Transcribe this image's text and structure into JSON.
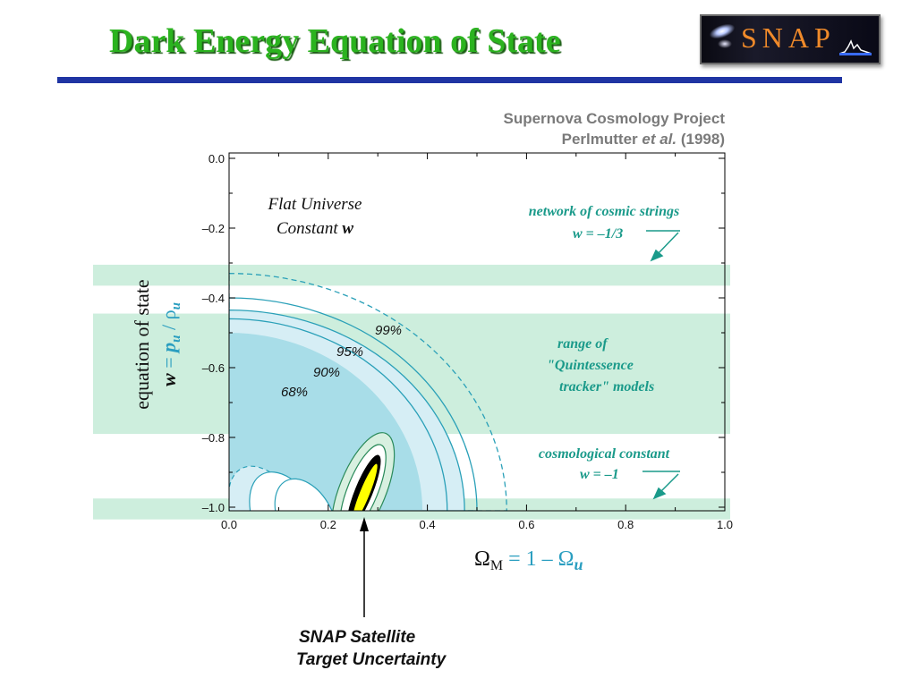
{
  "slide": {
    "title": "Dark Energy Equation of State",
    "logo_text": "SNAP"
  },
  "colors": {
    "title": "#2bb31f",
    "rule": "#1f34a3",
    "band": "#cdeedd",
    "contour_dark": "#a8dde8",
    "contour_light": "#d6eef5",
    "contour_line": "#2aa0b8",
    "snap_ellipse": "#ffff00",
    "annotation": "#1a9a8a"
  },
  "chart_data": {
    "type": "contour",
    "source_line1": "Supernova Cosmology Project",
    "source_line2_a": "Perlmutter ",
    "source_line2_b": "et al.",
    "source_line2_c": " (1998)",
    "xlim": [
      0.0,
      1.0
    ],
    "ylim": [
      -1.05,
      0.0
    ],
    "x_ticks": [
      "0.0",
      "0.2",
      "0.4",
      "0.6",
      "0.8",
      "1.0"
    ],
    "y_ticks": [
      "0.0",
      "–0.2",
      "–0.4",
      "–0.6",
      "–0.8",
      "–1.0"
    ],
    "y_tick_values": [
      0.0,
      -0.2,
      -0.4,
      -0.6,
      -0.8,
      -1.0
    ],
    "x_tick_values": [
      0.0,
      0.2,
      0.4,
      0.6,
      0.8,
      1.0
    ],
    "ylabel_line1": "equation of state",
    "ylabel_w": "w",
    "ylabel_eq": " = ",
    "ylabel_p": "p",
    "ylabel_u": "u",
    "ylabel_slash": " / ",
    "ylabel_rho": "ρ",
    "ylabel_u2": "u",
    "xlabel_omega": "Ω",
    "xlabel_M": "M",
    "xlabel_rest": " = 1 – Ω",
    "xlabel_u": "u",
    "inset_line1": "Flat Universe",
    "inset_line2_a": "Constant ",
    "inset_line2_b": "w",
    "bands": [
      {
        "name": "cosmic-strings-band",
        "ymin": -0.365,
        "ymax": -0.305
      },
      {
        "name": "quintessence-band",
        "ymin": -0.79,
        "ymax": -0.445
      },
      {
        "name": "cosmological-constant-band",
        "ymin": -1.035,
        "ymax": -0.975
      }
    ],
    "annotations": {
      "strings_line1": "network of cosmic strings",
      "strings_line2": "w = –1/3",
      "quint_line1": "range of",
      "quint_line2": "\"Quintessence",
      "quint_line3": "tracker\" models",
      "lambda_line1": "cosmological constant",
      "lambda_line2": "w = –1"
    },
    "contours": [
      {
        "label": "99%",
        "omega_at_w_minus1": 0.56,
        "style": "dashed"
      },
      {
        "label": "95%",
        "omega_at_w_minus1": 0.48,
        "style": "solid"
      },
      {
        "label": "90%",
        "omega_at_w_minus1": 0.42,
        "style": "solid"
      },
      {
        "label": "68%",
        "omega_at_w_minus1": 0.39,
        "style": "filled"
      }
    ],
    "contour_labels": [
      "99%",
      "95%",
      "90%",
      "68%"
    ],
    "snap": {
      "center_omega": 0.27,
      "center_w": -0.95,
      "label_line1": "SNAP Satellite",
      "label_line2": "Target Uncertainty"
    }
  }
}
